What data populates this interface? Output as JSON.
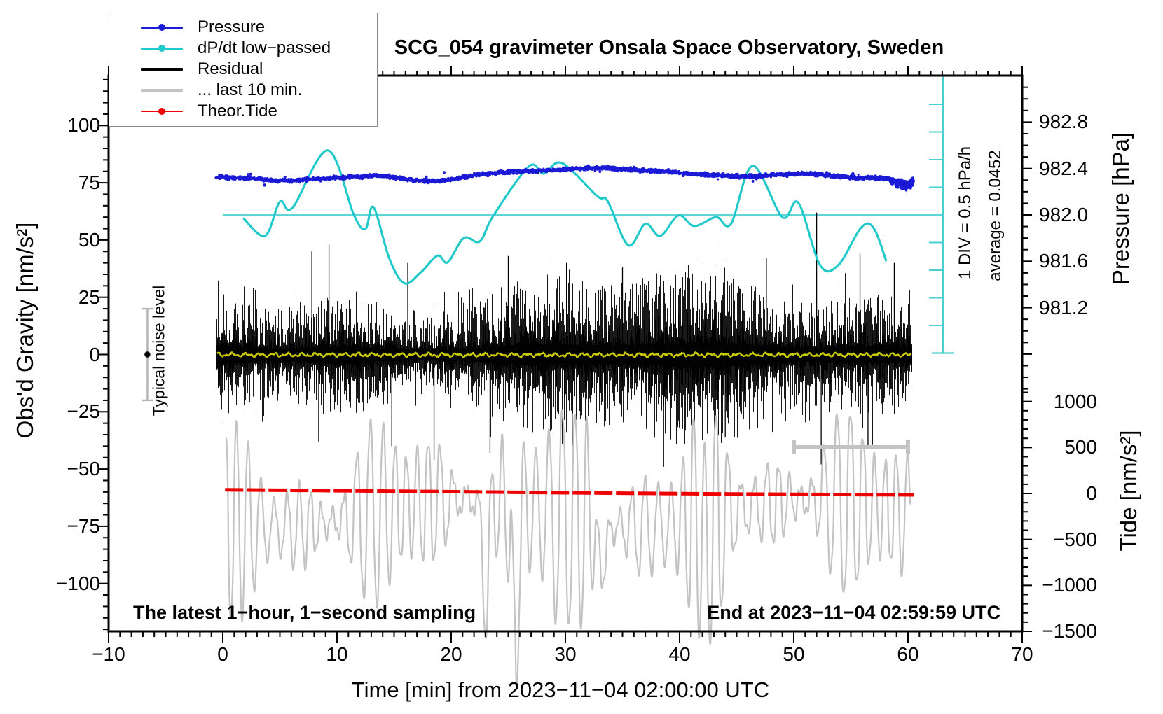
{
  "chart_data": {
    "type": "line",
    "title": "SCG_054 gravimeter Onsala Space Observatory, Sweden",
    "xlabel": "Time [min] from 2023−11−04 02:00:00 UTC",
    "corner_left": "The latest 1−hour, 1−second sampling",
    "corner_right": "End at 2023−11−04 02:59:59 UTC",
    "x_axis": {
      "min": -10,
      "max": 70,
      "major_tick": 10,
      "minor_tick": 1,
      "tick_values": [
        -10,
        0,
        10,
        20,
        30,
        40,
        50,
        60,
        70
      ],
      "tick_labels": [
        "−10",
        "0",
        "10",
        "20",
        "30",
        "40",
        "50",
        "60",
        "70"
      ]
    },
    "y_left": {
      "label": "Obs'd Gravity [nm/s²]",
      "min": -121,
      "max": 122,
      "major_tick": 25,
      "minor_tick": 5,
      "tick_values": [
        100,
        75,
        50,
        25,
        0,
        -25,
        -50,
        -75,
        -100
      ],
      "tick_labels": [
        "100",
        "75",
        "50",
        "25",
        "0",
        "−25",
        "−50",
        "−75",
        "−100"
      ]
    },
    "y_right_pressure": {
      "label": "Pressure [hPa]",
      "major_tick": 0.4,
      "minor_tick": 0.1,
      "tick_values": [
        982.8,
        982.4,
        982.0,
        981.6,
        981.2
      ],
      "tick_labels": [
        "982.8",
        "982.4",
        "982.0",
        "981.6",
        "981.2"
      ]
    },
    "y_right_tide": {
      "label": "Tide [nm/s²]",
      "major_tick": 500,
      "minor_tick": 100,
      "tick_values": [
        1000,
        500,
        0,
        -500,
        -1000,
        -1500
      ],
      "tick_labels": [
        "1000",
        "500",
        "0",
        "−500",
        "−1000",
        "−1500"
      ]
    },
    "legend": [
      {
        "label": "Pressure",
        "color": "#1a1ad6",
        "marker": true,
        "thickness": 3
      },
      {
        "label": "dP/dt low−passed",
        "color": "#20c9c9",
        "marker": true,
        "thickness": 3
      },
      {
        "label": "Residual",
        "color": "#000000",
        "marker": false,
        "thickness": 4
      },
      {
        "label": "... last 10 min.",
        "color": "#c3c3c3",
        "marker": false,
        "thickness": 4
      },
      {
        "label": "Theor.Tide",
        "color": "#ee0000",
        "marker": true,
        "thickness": 2.5
      }
    ],
    "scale_bar": {
      "text": "1 DIV = 0.5 hPa/h",
      "div_hpa_per_h": 0.5
    },
    "average_text": "average = 0.0452",
    "average_value": 0.0452,
    "noise_bar": {
      "label": "Typical noise level",
      "center_gravity": 0,
      "half_range": 20,
      "at_minute": -6.6
    },
    "last10_bar": {
      "from_min": 50,
      "to_min": 60,
      "gravity": -40.5
    },
    "series": {
      "pressure_hpa": [
        [
          -0.5,
          982.325
        ],
        [
          2.6,
          982.314
        ],
        [
          5.0,
          982.296
        ],
        [
          8.1,
          982.308
        ],
        [
          11.1,
          982.326
        ],
        [
          13.9,
          982.338
        ],
        [
          15.7,
          982.314
        ],
        [
          17.9,
          982.29
        ],
        [
          19.7,
          982.302
        ],
        [
          22.2,
          982.344
        ],
        [
          24.6,
          982.368
        ],
        [
          27.1,
          982.38
        ],
        [
          29.9,
          982.392
        ],
        [
          32.3,
          982.404
        ],
        [
          34.5,
          982.398
        ],
        [
          36.6,
          982.386
        ],
        [
          38.8,
          982.374
        ],
        [
          40.9,
          982.356
        ],
        [
          43.0,
          982.344
        ],
        [
          45.5,
          982.332
        ],
        [
          47.3,
          982.338
        ],
        [
          49.2,
          982.35
        ],
        [
          51.3,
          982.356
        ],
        [
          53.5,
          982.338
        ],
        [
          55.3,
          982.32
        ],
        [
          57.2,
          982.32
        ],
        [
          58.4,
          982.308
        ],
        [
          59.3,
          982.284
        ],
        [
          59.9,
          982.272
        ],
        [
          60.4,
          982.296
        ]
      ],
      "dpdt_hpa_per_h": [
        [
          1.8,
          -0.06
        ],
        [
          3.7,
          -0.38
        ],
        [
          5.0,
          0.24
        ],
        [
          6.1,
          0.13
        ],
        [
          9.2,
          1.17
        ],
        [
          11.5,
          -0.01
        ],
        [
          12.5,
          -0.25
        ],
        [
          13.2,
          0.14
        ],
        [
          14.6,
          -0.8
        ],
        [
          15.9,
          -1.24
        ],
        [
          17.3,
          -1.05
        ],
        [
          18.8,
          -0.74
        ],
        [
          19.7,
          -0.86
        ],
        [
          21.1,
          -0.42
        ],
        [
          22.5,
          -0.48
        ],
        [
          23.7,
          -0.01
        ],
        [
          26.8,
          0.88
        ],
        [
          28.1,
          0.75
        ],
        [
          29.7,
          0.94
        ],
        [
          32.8,
          0.34
        ],
        [
          33.7,
          0.25
        ],
        [
          35.5,
          -0.55
        ],
        [
          37.0,
          -0.16
        ],
        [
          38.3,
          -0.38
        ],
        [
          39.9,
          -0.01
        ],
        [
          41.3,
          -0.2
        ],
        [
          43.2,
          -0.04
        ],
        [
          44.5,
          -0.16
        ],
        [
          46.4,
          0.89
        ],
        [
          49.0,
          -0.04
        ],
        [
          50.4,
          0.22
        ],
        [
          52.3,
          -0.91
        ],
        [
          53.9,
          -0.91
        ],
        [
          55.9,
          -0.23
        ],
        [
          57.0,
          -0.24
        ],
        [
          58.1,
          -0.84
        ]
      ],
      "theor_tide_nms2": [
        [
          0.2,
          40
        ],
        [
          15,
          25
        ],
        [
          30,
          8
        ],
        [
          45,
          -6
        ],
        [
          60.5,
          -15
        ]
      ],
      "residual": {
        "center_nms2": 0,
        "typical_band_nms2": 25,
        "spikes_up": [
          [
            7.8,
            45
          ],
          [
            9.3,
            48
          ],
          [
            16.2,
            40
          ],
          [
            25.0,
            43
          ],
          [
            30.1,
            40
          ],
          [
            35.0,
            38
          ],
          [
            47.6,
            42
          ],
          [
            52.0,
            62
          ],
          [
            55.8,
            44
          ],
          [
            58.8,
            40
          ]
        ],
        "spikes_down": [
          [
            8.4,
            -38
          ],
          [
            14.8,
            -40
          ],
          [
            18.5,
            -46
          ],
          [
            23.4,
            -43
          ],
          [
            30.6,
            -40
          ],
          [
            38.6,
            -49
          ],
          [
            44.0,
            -36
          ],
          [
            52.4,
            -48
          ],
          [
            56.5,
            -40
          ]
        ]
      },
      "residual_lowpass": {
        "center_nms2": 0,
        "amplitude_nms2": 1.5
      },
      "last10_scaled": {
        "start_min": 0.3,
        "end_min": 60.2,
        "period_min": 1.05,
        "center_tide": -220,
        "typical_amplitude_tide": 520,
        "note": "fast oscillation roughly between +800 and −1250 nm/s², excursions below −1500 near minutes 23, 25.5 and 30–34"
      }
    },
    "colors": {
      "pressure": "#1a1ad6",
      "dpdt": "#20c9c9",
      "dpdt_line": "#49cfcf",
      "residual": "#000000",
      "last10": "#c3c3c3",
      "tide": "#ee0000",
      "lowpass": "#c9c900",
      "frame": "#000000",
      "noise_bar": "#b3b3b3"
    }
  }
}
